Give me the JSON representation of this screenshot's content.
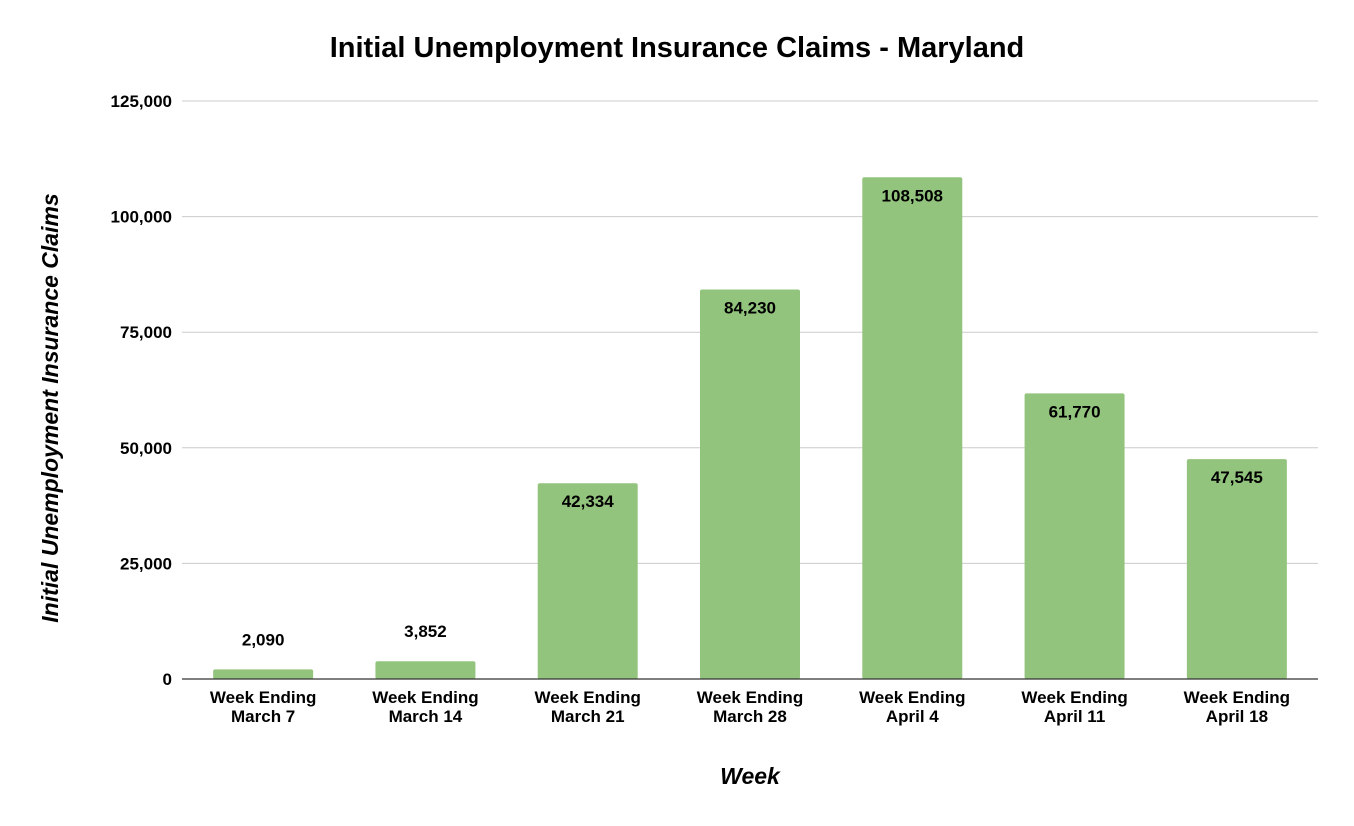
{
  "chart_data": {
    "type": "bar",
    "title": "Initial Unemployment Insurance Claims - Maryland",
    "xlabel": "Week",
    "ylabel": "Initial Unemployment Insurance Claims",
    "categories": [
      [
        "Week Ending",
        "March 7"
      ],
      [
        "Week Ending",
        "March 14"
      ],
      [
        "Week Ending",
        "March 21"
      ],
      [
        "Week Ending",
        "March 28"
      ],
      [
        "Week Ending",
        "April 4"
      ],
      [
        "Week Ending",
        "April 11"
      ],
      [
        "Week Ending",
        "April 18"
      ]
    ],
    "values": [
      2090,
      3852,
      42334,
      84230,
      108508,
      61770,
      47545
    ],
    "value_labels": [
      "2,090",
      "3,852",
      "42,334",
      "84,230",
      "108,508",
      "61,770",
      "47,545"
    ],
    "yticks": [
      0,
      25000,
      50000,
      75000,
      100000,
      125000
    ],
    "ytick_labels": [
      "0",
      "25,000",
      "50,000",
      "75,000",
      "100,000",
      "125,000"
    ],
    "ylim": [
      0,
      125000
    ],
    "grid": true,
    "legend": "none",
    "bar_color": "#93c47d"
  }
}
